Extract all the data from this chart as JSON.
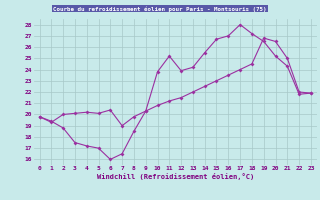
{
  "title": "Courbe du refroidissement éolien pour Paris - Montsouris (75)",
  "xlabel": "Windchill (Refroidissement éolien,°C)",
  "xlim": [
    -0.5,
    23.5
  ],
  "ylim": [
    15.5,
    28.5
  ],
  "xticks": [
    0,
    1,
    2,
    3,
    4,
    5,
    6,
    7,
    8,
    9,
    10,
    11,
    12,
    13,
    14,
    15,
    16,
    17,
    18,
    19,
    20,
    21,
    22,
    23
  ],
  "yticks": [
    16,
    17,
    18,
    19,
    20,
    21,
    22,
    23,
    24,
    25,
    26,
    27,
    28
  ],
  "line1_x": [
    0,
    1,
    2,
    3,
    4,
    5,
    6,
    7,
    8,
    9,
    10,
    11,
    12,
    13,
    14,
    15,
    16,
    17,
    18,
    19,
    20,
    21,
    22,
    23
  ],
  "line1_y": [
    19.8,
    19.4,
    18.8,
    17.5,
    17.2,
    17.0,
    16.0,
    16.5,
    18.5,
    20.3,
    23.8,
    25.2,
    23.9,
    24.2,
    25.5,
    26.7,
    27.0,
    28.0,
    27.2,
    26.5,
    25.2,
    24.3,
    21.8,
    21.9
  ],
  "line2_x": [
    0,
    1,
    2,
    3,
    4,
    5,
    6,
    7,
    8,
    9,
    10,
    11,
    12,
    13,
    14,
    15,
    16,
    17,
    18,
    19,
    20,
    21,
    22,
    23
  ],
  "line2_y": [
    19.8,
    19.3,
    20.0,
    20.1,
    20.2,
    20.1,
    20.4,
    19.0,
    19.8,
    20.3,
    20.8,
    21.2,
    21.5,
    22.0,
    22.5,
    23.0,
    23.5,
    24.0,
    24.5,
    26.8,
    26.5,
    25.0,
    22.0,
    21.9
  ],
  "color": "#9b30a0",
  "bg_color": "#c8eaea",
  "grid_color": "#a8c8c8",
  "title_bg": "#5858a8",
  "title_color": "#ffffff",
  "tick_label_color": "#800080"
}
